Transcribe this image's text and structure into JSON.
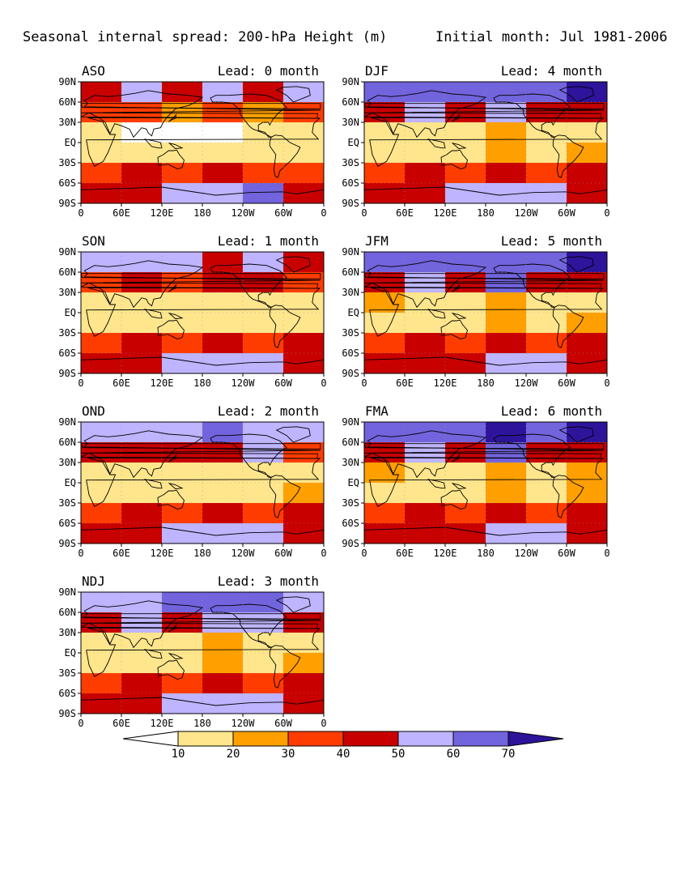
{
  "header": {
    "title": "Seasonal internal spread: 200-hPa Height (m)",
    "initial": "Initial month: Jul 1981-2006"
  },
  "axes": {
    "lat_labels": [
      "90N",
      "60N",
      "30N",
      "EQ",
      "30S",
      "60S",
      "90S"
    ],
    "lon_labels": [
      "0",
      "60E",
      "120E",
      "180",
      "120W",
      "60W",
      "0"
    ]
  },
  "panels": [
    {
      "season": "ASO",
      "lead": "Lead: 0 month"
    },
    {
      "season": "DJF",
      "lead": "Lead: 4 month"
    },
    {
      "season": "SON",
      "lead": "Lead: 1 month"
    },
    {
      "season": "JFM",
      "lead": "Lead: 5 month"
    },
    {
      "season": "OND",
      "lead": "Lead: 2 month"
    },
    {
      "season": "FMA",
      "lead": "Lead: 6 month"
    },
    {
      "season": "NDJ",
      "lead": "Lead: 3 month"
    }
  ],
  "colorbar": {
    "levels": [
      "10",
      "20",
      "30",
      "40",
      "50",
      "60",
      "70"
    ],
    "colors": [
      "#ffffff",
      "#ffe68c",
      "#ffa000",
      "#ff3c00",
      "#c80000",
      "#beb4ff",
      "#7264dc",
      "#2d149a"
    ]
  },
  "chart_data": {
    "type": "heatmap",
    "variable": "Seasonal internal spread: 200-hPa Height (m)",
    "period": "Initial month: Jul 1981-2006",
    "units": "m",
    "contour_levels": [
      10,
      20,
      30,
      40,
      50,
      60,
      70
    ],
    "lat_bands": [
      "90N-60N",
      "60N-30N",
      "30N-EQ",
      "EQ-30S",
      "30S-60S",
      "60S-90S"
    ],
    "lon_sectors": [
      "0-60E",
      "60E-120E",
      "120E-180",
      "180-120W",
      "120W-60W",
      "60W-0"
    ],
    "panels": [
      {
        "season": "ASO",
        "lead_months": 0,
        "spread_m": [
          [
            40,
            50,
            45,
            50,
            45,
            50
          ],
          [
            30,
            30,
            25,
            30,
            25,
            30
          ],
          [
            10,
            5,
            5,
            5,
            10,
            10
          ],
          [
            15,
            15,
            15,
            10,
            15,
            15
          ],
          [
            35,
            40,
            30,
            40,
            30,
            35
          ],
          [
            45,
            45,
            55,
            55,
            60,
            45
          ]
        ]
      },
      {
        "season": "SON",
        "lead_months": 1,
        "spread_m": [
          [
            50,
            50,
            55,
            45,
            50,
            45
          ],
          [
            30,
            45,
            35,
            40,
            45,
            30
          ],
          [
            15,
            10,
            15,
            15,
            10,
            15
          ],
          [
            15,
            15,
            15,
            15,
            15,
            15
          ],
          [
            35,
            40,
            30,
            40,
            30,
            40
          ],
          [
            45,
            45,
            55,
            55,
            50,
            45
          ]
        ]
      },
      {
        "season": "OND",
        "lead_months": 2,
        "spread_m": [
          [
            55,
            55,
            55,
            65,
            55,
            55
          ],
          [
            45,
            45,
            40,
            45,
            50,
            35
          ],
          [
            15,
            10,
            15,
            15,
            15,
            15
          ],
          [
            15,
            15,
            15,
            15,
            15,
            20
          ],
          [
            35,
            40,
            35,
            40,
            30,
            40
          ],
          [
            45,
            45,
            55,
            55,
            50,
            45
          ]
        ]
      },
      {
        "season": "NDJ",
        "lead_months": 3,
        "spread_m": [
          [
            55,
            55,
            60,
            65,
            60,
            55
          ],
          [
            45,
            50,
            45,
            55,
            50,
            40
          ],
          [
            15,
            15,
            15,
            20,
            15,
            15
          ],
          [
            15,
            15,
            15,
            20,
            15,
            20
          ],
          [
            35,
            40,
            35,
            40,
            30,
            40
          ],
          [
            45,
            45,
            55,
            55,
            50,
            45
          ]
        ]
      },
      {
        "season": "DJF",
        "lead_months": 4,
        "spread_m": [
          [
            65,
            60,
            60,
            65,
            65,
            70
          ],
          [
            45,
            55,
            45,
            55,
            45,
            40
          ],
          [
            15,
            15,
            15,
            20,
            15,
            15
          ],
          [
            15,
            15,
            15,
            20,
            15,
            20
          ],
          [
            35,
            40,
            35,
            40,
            30,
            40
          ],
          [
            45,
            45,
            55,
            55,
            50,
            45
          ]
        ]
      },
      {
        "season": "JFM",
        "lead_months": 5,
        "spread_m": [
          [
            65,
            60,
            60,
            65,
            65,
            70
          ],
          [
            45,
            55,
            45,
            60,
            45,
            40
          ],
          [
            20,
            15,
            15,
            20,
            15,
            15
          ],
          [
            15,
            15,
            15,
            20,
            15,
            20
          ],
          [
            35,
            40,
            35,
            40,
            30,
            40
          ],
          [
            45,
            45,
            45,
            55,
            50,
            45
          ]
        ]
      },
      {
        "season": "FMA",
        "lead_months": 6,
        "spread_m": [
          [
            65,
            60,
            60,
            70,
            65,
            70
          ],
          [
            45,
            55,
            45,
            60,
            45,
            40
          ],
          [
            20,
            15,
            15,
            20,
            15,
            20
          ],
          [
            15,
            15,
            15,
            20,
            15,
            20
          ],
          [
            35,
            40,
            35,
            40,
            30,
            40
          ],
          [
            45,
            45,
            45,
            55,
            50,
            45
          ]
        ]
      }
    ]
  }
}
